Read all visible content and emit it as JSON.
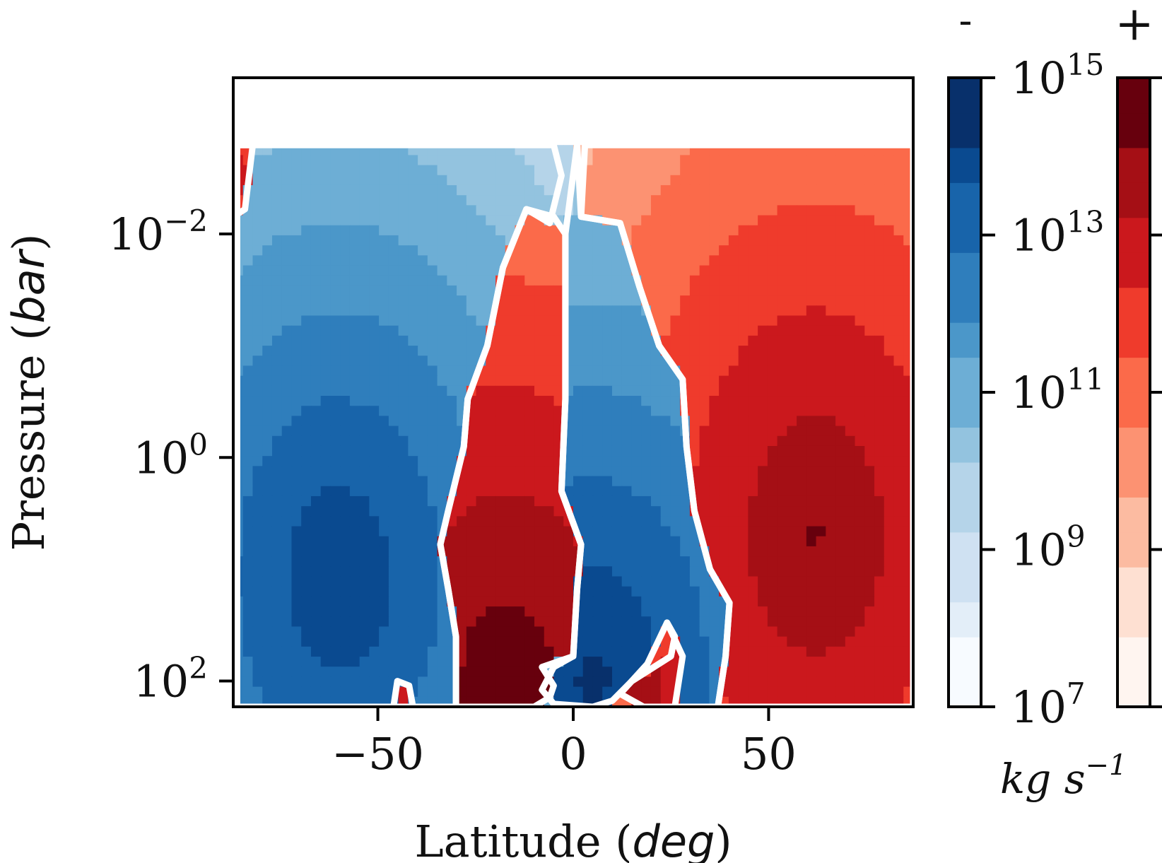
{
  "chart_data": {
    "type": "heatmap",
    "subtype": "filled-contour",
    "title": "",
    "xlabel": {
      "text": "Latitude (",
      "italic": "deg",
      "suffix": ")"
    },
    "ylabel": {
      "text": "Pressure (",
      "italic": "bar",
      "suffix": ")"
    },
    "xlim": [
      -87,
      87
    ],
    "ylim": [
      170,
      0.0004
    ],
    "x_scale": "linear",
    "y_scale": "log",
    "x_ticks": [
      {
        "value": -50,
        "label": "−50"
      },
      {
        "value": 0,
        "label": "0"
      },
      {
        "value": 50,
        "label": "50"
      }
    ],
    "y_ticks": [
      {
        "value": 0.01,
        "base": "10",
        "exp": "−2"
      },
      {
        "value": 1,
        "base": "10",
        "exp": "0"
      },
      {
        "value": 100,
        "base": "10",
        "exp": "2"
      }
    ],
    "grid": false,
    "data_top_pressure": 0.0016,
    "zero_contour_color": "#ffffff",
    "cells": [
      {
        "name": "southern-negative-cell",
        "sign": "negative",
        "peak_log10": 14.3,
        "peak": [
          -60,
          12
        ],
        "outline": [
          [
            -86,
            0.0016
          ],
          [
            -35,
            0.0016
          ],
          [
            -5,
            0.0016
          ],
          [
            -3,
            0.003
          ],
          [
            -6,
            0.008
          ],
          [
            -12,
            0.006
          ],
          [
            -18,
            0.02
          ],
          [
            -22,
            0.1
          ],
          [
            -27,
            0.3
          ],
          [
            -28,
            0.8
          ],
          [
            -32,
            3
          ],
          [
            -34,
            6
          ],
          [
            -32,
            15
          ],
          [
            -30,
            40
          ],
          [
            -30,
            170
          ],
          [
            -86,
            170
          ]
        ]
      },
      {
        "name": "southern-positive-cell",
        "sign": "positive",
        "peak_log10": 14.8,
        "peak": [
          -17,
          110
        ],
        "outline": [
          [
            -12,
            0.006
          ],
          [
            -5,
            0.007
          ],
          [
            -2,
            0.01
          ],
          [
            -2,
            0.3
          ],
          [
            -3,
            2
          ],
          [
            2,
            6
          ],
          [
            1,
            15
          ],
          [
            0,
            60
          ],
          [
            -8,
            75
          ],
          [
            -5,
            110
          ],
          [
            -6,
            140
          ],
          [
            -10,
            170
          ],
          [
            -30,
            170
          ],
          [
            -30,
            40
          ],
          [
            -32,
            15
          ],
          [
            -34,
            6
          ],
          [
            -32,
            3
          ],
          [
            -28,
            0.8
          ],
          [
            -27,
            0.3
          ],
          [
            -22,
            0.1
          ],
          [
            -18,
            0.02
          ]
        ]
      },
      {
        "name": "equatorial-negative-cell",
        "sign": "negative",
        "peak_log10": 14.5,
        "peak": [
          5,
          100
        ],
        "outline": [
          [
            1,
            0.0016
          ],
          [
            2,
            0.007
          ],
          [
            12,
            0.008
          ],
          [
            17,
            0.03
          ],
          [
            22,
            0.1
          ],
          [
            28,
            0.2
          ],
          [
            29,
            0.8
          ],
          [
            31,
            3
          ],
          [
            35,
            10
          ],
          [
            40,
            20
          ],
          [
            39,
            60
          ],
          [
            37,
            170
          ],
          [
            18,
            170
          ],
          [
            12,
            130
          ],
          [
            19,
            70
          ],
          [
            24,
            30
          ],
          [
            26,
            40
          ],
          [
            25,
            60
          ],
          [
            15,
            100
          ],
          [
            10,
            150
          ],
          [
            5,
            170
          ],
          [
            -5,
            160
          ],
          [
            -8,
            120
          ],
          [
            -5,
            75
          ],
          [
            0,
            60
          ],
          [
            1,
            15
          ],
          [
            2,
            6
          ],
          [
            -3,
            2
          ],
          [
            -2,
            0.3
          ],
          [
            -2,
            0.01
          ]
        ]
      },
      {
        "name": "northern-positive-cell",
        "sign": "positive",
        "peak_log10": 14.2,
        "peak": [
          62,
          5
        ],
        "outline": [
          [
            3,
            0.0016
          ],
          [
            87,
            0.0016
          ],
          [
            87,
            170
          ],
          [
            37,
            170
          ],
          [
            39,
            60
          ],
          [
            40,
            20
          ],
          [
            35,
            10
          ],
          [
            31,
            3
          ],
          [
            29,
            0.8
          ],
          [
            28,
            0.2
          ],
          [
            22,
            0.1
          ],
          [
            17,
            0.03
          ],
          [
            12,
            0.008
          ],
          [
            2,
            0.007
          ]
        ]
      },
      {
        "name": "small-positive-pocket",
        "sign": "positive",
        "peak_log10": 13.5,
        "peak": [
          18,
          110
        ],
        "outline": [
          [
            24,
            30
          ],
          [
            26,
            40
          ],
          [
            25,
            60
          ],
          [
            15,
            100
          ],
          [
            12,
            130
          ],
          [
            18,
            170
          ],
          [
            26,
            170
          ],
          [
            28,
            60
          ]
        ]
      },
      {
        "name": "southern-edge-positive",
        "sign": "positive",
        "peak_log10": 12.5,
        "peak": [
          -86,
          0.003
        ],
        "outline": [
          [
            -87,
            0.0016
          ],
          [
            -82,
            0.0016
          ],
          [
            -84,
            0.006
          ],
          [
            -87,
            0.007
          ]
        ]
      },
      {
        "name": "southern-deep-positive",
        "sign": "positive",
        "peak_log10": 13.0,
        "peak": [
          -43,
          150
        ],
        "outline": [
          [
            -45,
            100
          ],
          [
            -42,
            110
          ],
          [
            -41,
            170
          ],
          [
            -46,
            170
          ]
        ]
      }
    ],
    "colorbars": [
      {
        "name": "negative-colorbar",
        "label": "-",
        "sign": "negative",
        "range_log10": [
          7,
          15
        ],
        "ticks": [
          {
            "value": 1000000000000000.0,
            "base": "10",
            "exp": "15"
          },
          {
            "value": 10000000000000.0,
            "base": "10",
            "exp": "13"
          },
          {
            "value": 100000000000.0,
            "base": "10",
            "exp": "11"
          },
          {
            "value": 1000000000.0,
            "base": "10",
            "exp": "9"
          },
          {
            "value": 10000000.0,
            "base": "10",
            "exp": "7"
          }
        ],
        "colors": [
          "#f7fbff",
          "#e3eef8",
          "#cfe1f2",
          "#b5d4e9",
          "#93c3df",
          "#6daed5",
          "#4b97c9",
          "#2f7ebc",
          "#1864aa",
          "#0a4a90",
          "#08306b"
        ]
      },
      {
        "name": "positive-colorbar",
        "label": "+",
        "sign": "positive",
        "range_log10": [
          7,
          15
        ],
        "colors": [
          "#fff5f0",
          "#fee0d2",
          "#fcbba1",
          "#fc9272",
          "#fb6a4a",
          "#ef3b2c",
          "#cb181d",
          "#a50f15",
          "#67000d"
        ]
      }
    ],
    "units": {
      "text": "kg s",
      "exp": "−1"
    }
  }
}
